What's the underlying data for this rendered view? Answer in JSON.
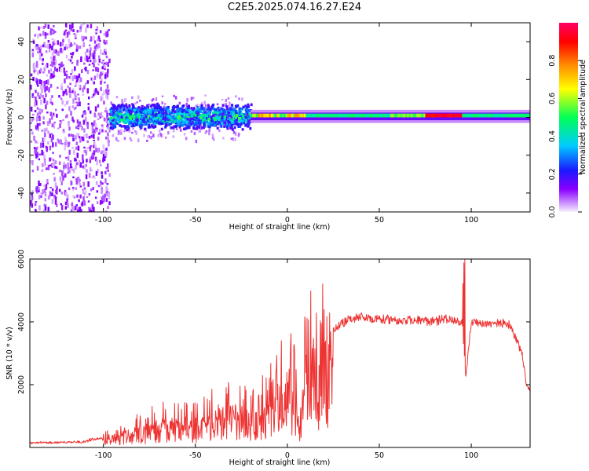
{
  "title": "C2E5.2025.074.16.27.E24",
  "colors": {
    "snr_line": "#ee3333",
    "axis": "#000000",
    "colorbar_stops": [
      "#f7f0ff",
      "#8a00ff",
      "#1a1aff",
      "#00ccff",
      "#00ff55",
      "#ffff00",
      "#ff8800",
      "#ff0000",
      "#ff0066"
    ]
  },
  "chart_data": [
    {
      "type": "heatmap",
      "name": "spectrogram",
      "xlabel": "Height of straight line (km)",
      "ylabel": "Frequency (Hz)",
      "xlim": [
        -140,
        132
      ],
      "ylim": [
        -50,
        50
      ],
      "x_ticks": [
        "-100",
        "-50",
        "0",
        "50",
        "100"
      ],
      "y_ticks": [
        "-40",
        "-20",
        "0",
        "20",
        "40"
      ],
      "colorbar": {
        "label": "Normalized spectral amplitude",
        "range": [
          0.0,
          1.0
        ],
        "ticks": [
          "0.0",
          "0.2",
          "0.4",
          "0.6",
          "0.8"
        ]
      },
      "features": [
        {
          "x_range": [
            -140,
            -97
          ],
          "freq_range": [
            -50,
            50
          ],
          "amplitude": 0.1,
          "description": "broadband noise"
        },
        {
          "x_range": [
            -97,
            -20
          ],
          "freq_range": [
            -6,
            8
          ],
          "amplitude_peak": 0.45
        },
        {
          "x_range": [
            -20,
            132
          ],
          "freq_range": [
            -3,
            3
          ],
          "center_freq": 1,
          "amplitude_peak": 1.0
        }
      ]
    },
    {
      "type": "line",
      "name": "snr",
      "xlabel": "Height of straight line (km)",
      "ylabel": "SNR (10 * v/v)",
      "xlim": [
        -140,
        132
      ],
      "ylim": [
        0,
        6000
      ],
      "x_ticks": [
        "-100",
        "-50",
        "0",
        "50",
        "100"
      ],
      "y_ticks": [
        "2000",
        "4000",
        "6000"
      ],
      "series": [
        {
          "x": [
            -140,
            -120,
            -110,
            -105,
            -100,
            -90,
            -80,
            -70,
            -60,
            -50,
            -45,
            -40,
            -35,
            -30,
            -25,
            -20,
            -15,
            -10,
            -5,
            0,
            5,
            7,
            10,
            15,
            20,
            25,
            30,
            35,
            40,
            50,
            60,
            70,
            80,
            85,
            90,
            95,
            97,
            100,
            110,
            120,
            122,
            125,
            128,
            130,
            132
          ],
          "y": [
            180,
            200,
            220,
            350,
            300,
            500,
            700,
            900,
            1000,
            900,
            1050,
            1200,
            1300,
            1400,
            1300,
            1200,
            1400,
            1600,
            2200,
            2700,
            2000,
            700,
            3000,
            3500,
            3700,
            3850,
            4100,
            4250,
            4300,
            4250,
            4200,
            4200,
            4150,
            4250,
            4200,
            4100,
            2300,
            4150,
            4100,
            4100,
            3900,
            3500,
            3000,
            2000,
            1900
          ]
        }
      ]
    }
  ]
}
